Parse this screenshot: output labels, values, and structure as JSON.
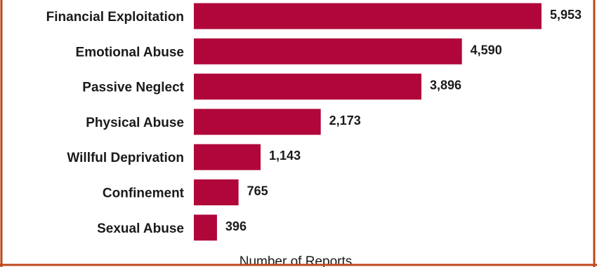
{
  "colors": {
    "bar": "#b0063a",
    "frame": "#c0471a",
    "text": "#1a1a1a"
  },
  "chart_data": {
    "type": "bar",
    "orientation": "horizontal",
    "xlabel": "Number of Reports",
    "categories": [
      "Financial Exploitation",
      "Emotional Abuse",
      "Passive Neglect",
      "Physical Abuse",
      "Willful Deprivation",
      "Confinement",
      "Sexual Abuse"
    ],
    "values": [
      5953,
      4590,
      3896,
      2173,
      1143,
      765,
      396
    ],
    "value_labels": [
      "5,953",
      "4,590",
      "3,896",
      "2,173",
      "1,143",
      "765",
      "396"
    ],
    "xlim": [
      0,
      6100
    ],
    "grid": false,
    "legend": "none"
  }
}
